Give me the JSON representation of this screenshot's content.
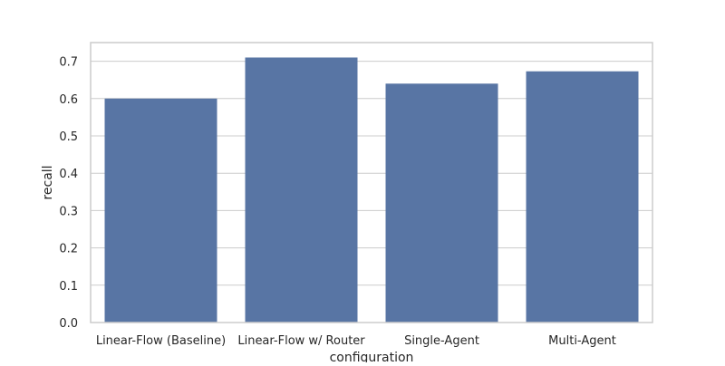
{
  "chart_data": {
    "type": "bar",
    "title": "",
    "xlabel": "configuration",
    "ylabel": "recall",
    "categories": [
      "Linear-Flow (Baseline)",
      "Linear-Flow w/ Router",
      "Single-Agent",
      "Multi-Agent"
    ],
    "values": [
      0.6,
      0.71,
      0.64,
      0.673
    ],
    "ylim": [
      0,
      0.75
    ],
    "yticks": [
      0.0,
      0.1,
      0.2,
      0.3,
      0.4,
      0.5,
      0.6,
      0.7
    ],
    "ytick_labels": [
      "0.0",
      "0.1",
      "0.2",
      "0.3",
      "0.4",
      "0.5",
      "0.6",
      "0.7"
    ],
    "grid": "horizontal",
    "bar_color": "#5875a4",
    "grid_color": "#cccccc",
    "frame_color": "#cccccc",
    "style": "seaborn-whitegrid"
  }
}
